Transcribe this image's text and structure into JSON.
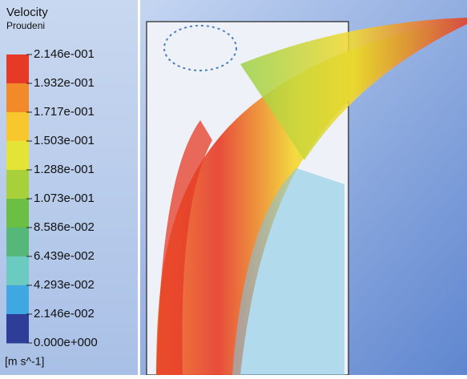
{
  "legend": {
    "title": "Velocity",
    "subtitle": "Proudeni",
    "ticks": [
      "2.146e-001",
      "1.932e-001",
      "1.717e-001",
      "1.503e-001",
      "1.288e-001",
      "1.073e-001",
      "8.586e-002",
      "6.439e-002",
      "4.293e-002",
      "2.146e-002",
      "0.000e+000"
    ],
    "unit": "[m s^-1]"
  }
}
